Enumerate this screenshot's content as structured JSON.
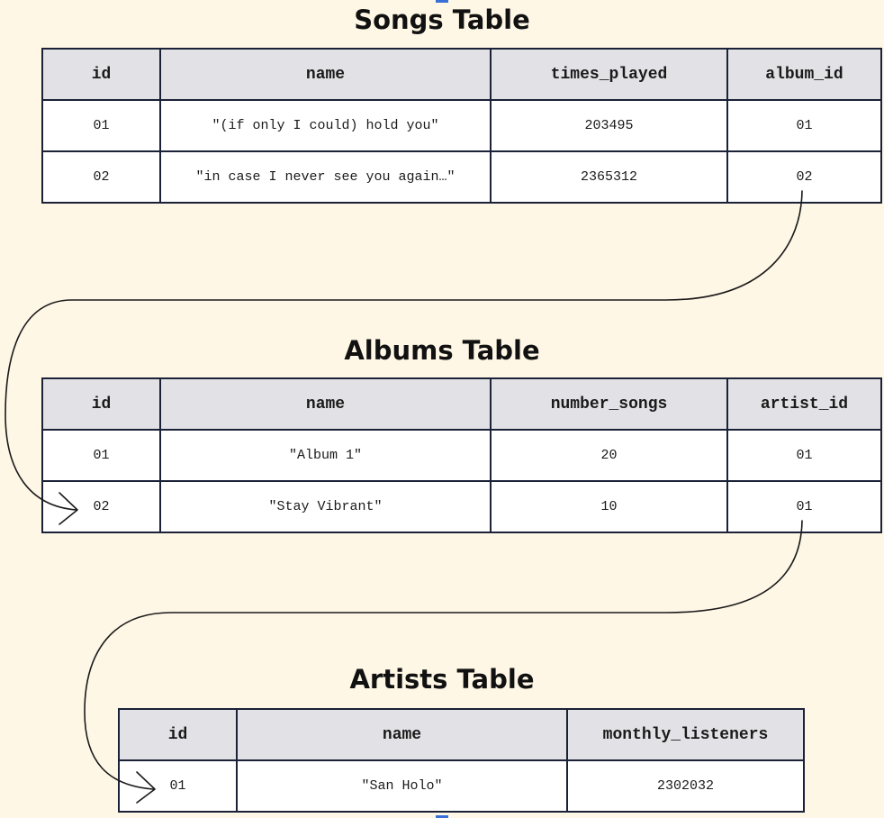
{
  "colors": {
    "background": "#fff7e6",
    "header_fill": "#e2e2e6",
    "cell_fill": "#ffffff",
    "border": "#1b2238",
    "connector": "#1a1a1a"
  },
  "songs": {
    "title": "Songs Table",
    "columns": [
      "id",
      "name",
      "times_played",
      "album_id"
    ],
    "rows": [
      [
        "01",
        "\"(if only I could) hold you\"",
        "203495",
        "01"
      ],
      [
        "02",
        "\"in case I never see you again…\"",
        "2365312",
        "02"
      ]
    ]
  },
  "albums": {
    "title": "Albums Table",
    "columns": [
      "id",
      "name",
      "number_songs",
      "artist_id"
    ],
    "rows": [
      [
        "01",
        "\"Album 1\"",
        "20",
        "01"
      ],
      [
        "02",
        "\"Stay Vibrant\"",
        "10",
        "01"
      ]
    ]
  },
  "artists": {
    "title": "Artists Table",
    "columns": [
      "id",
      "name",
      "monthly_listeners"
    ],
    "rows": [
      [
        "01",
        "\"San Holo\"",
        "2302032"
      ]
    ]
  }
}
